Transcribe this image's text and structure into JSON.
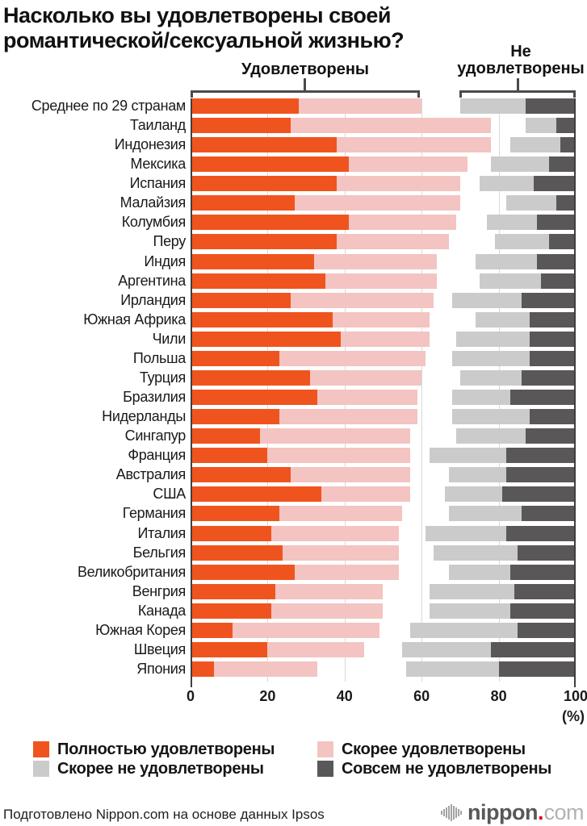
{
  "header": {
    "title_line1": "Насколько вы удовлетворены своей",
    "title_line2": "романтической/сексуальной жизнью?",
    "group_satisfied": "Удовлетворены",
    "group_not_satisfied_line1": "Не",
    "group_not_satisfied_line2": "удовлетворены"
  },
  "colors": {
    "fully_satisfied": "#f0541e",
    "rather_satisfied": "#f3c4c1",
    "rather_not_satisfied": "#cbcbcb",
    "not_at_all_satisfied": "#595757",
    "grid": "#d9d9d9",
    "axis": "#3f3f3f",
    "bracket": "#4a4a4a",
    "logo_dot": "#e60012"
  },
  "axis": {
    "ticks": [
      0,
      20,
      40,
      60,
      80,
      100
    ],
    "unit": "(%)"
  },
  "footer": {
    "credit": "Подготовлено Nippon.com на основе данных Ipsos",
    "logo": {
      "name": "nippon.com",
      "word": "nippon",
      "dot": ".",
      "tld": "com"
    }
  },
  "chart_data": {
    "type": "bar",
    "orientation": "horizontal-stacked",
    "title": "Насколько вы удовлетворены своей романтической/сексуальной жизнью?",
    "xlabel": "(%)",
    "xlim": [
      0,
      100
    ],
    "x_ticks": [
      0,
      20,
      40,
      60,
      80,
      100
    ],
    "grid": true,
    "layout_note": "Satisfied series (fully+rather) stack from 0; not-satisfied series (rather-not+not-at-all) stack ending at 100",
    "group_brackets": {
      "satisfied_span": [
        0,
        60
      ],
      "not_satisfied_span": [
        70,
        100
      ]
    },
    "categories": [
      "Среднее по 29 странам",
      "Таиланд",
      "Индонезия",
      "Мексика",
      "Испания",
      "Малайзия",
      "Колумбия",
      "Перу",
      "Индия",
      "Аргентина",
      "Ирландия",
      "Южная Африка",
      "Чили",
      "Польша",
      "Турция",
      "Бразилия",
      "Нидерланды",
      "Сингапур",
      "Франция",
      "Австралия",
      "США",
      "Германия",
      "Италия",
      "Бельгия",
      "Великобритания",
      "Венгрия",
      "Канада",
      "Южная Корея",
      "Швеция",
      "Япония"
    ],
    "series": [
      {
        "name": "Полностью удовлетворены",
        "color": "#f0541e",
        "anchor": "left",
        "values": [
          28,
          26,
          38,
          41,
          38,
          27,
          41,
          38,
          32,
          35,
          26,
          37,
          39,
          23,
          31,
          33,
          23,
          18,
          20,
          26,
          34,
          23,
          21,
          24,
          27,
          22,
          21,
          11,
          20,
          6
        ]
      },
      {
        "name": "Скорее удовлетворены",
        "color": "#f3c4c1",
        "anchor": "left",
        "values": [
          32,
          52,
          40,
          31,
          32,
          43,
          28,
          29,
          32,
          29,
          37,
          25,
          23,
          38,
          29,
          26,
          36,
          39,
          37,
          31,
          23,
          32,
          33,
          30,
          27,
          28,
          29,
          38,
          25,
          27
        ]
      },
      {
        "name": "Скорее не удовлетворены",
        "color": "#cbcbcb",
        "anchor": "right",
        "values": [
          17,
          8,
          13,
          15,
          14,
          13,
          13,
          14,
          16,
          16,
          18,
          14,
          19,
          20,
          16,
          15,
          20,
          18,
          20,
          15,
          15,
          19,
          21,
          22,
          16,
          22,
          21,
          28,
          23,
          24
        ]
      },
      {
        "name": "Совсем не удовлетворены",
        "color": "#595757",
        "anchor": "right",
        "values": [
          13,
          5,
          4,
          7,
          11,
          5,
          10,
          7,
          10,
          9,
          14,
          12,
          12,
          12,
          14,
          17,
          12,
          13,
          18,
          18,
          19,
          14,
          18,
          15,
          17,
          16,
          17,
          15,
          22,
          20
        ]
      }
    ]
  }
}
